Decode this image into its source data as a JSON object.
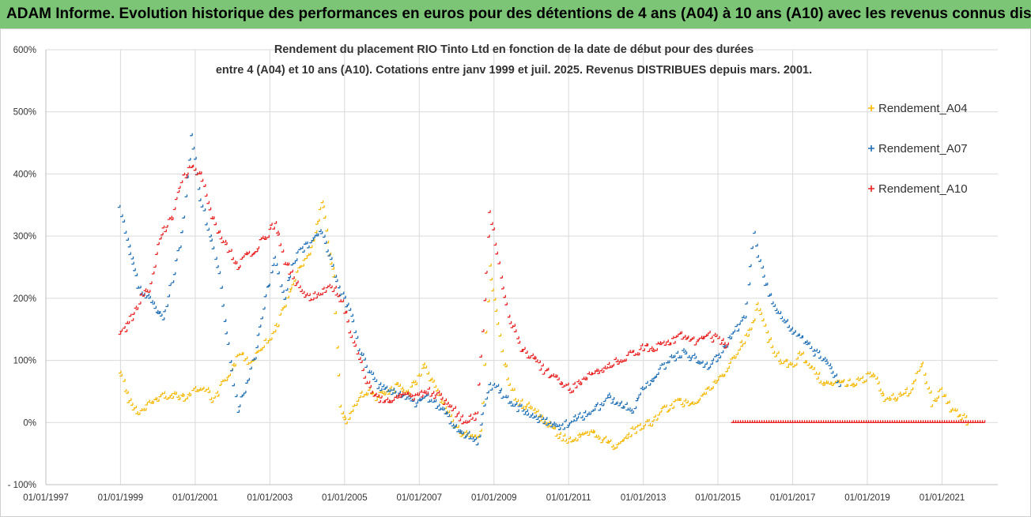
{
  "banner": {
    "text": "ADAM Informe. Evolution historique des performances en euros pour des détentions de 4 ans (A04) à 10 ans (A10) avec les revenus connus distribués",
    "background": "#7cc576"
  },
  "chart_data": {
    "type": "scatter",
    "title_line1": "Rendement du placement RIO Tinto Ltd en fonction de la date de début pour des durées",
    "title_line2": "entre 4 (A04) et 10 ans (A10). Cotations entre janv 1999 et juil. 2025. Revenus DISTRIBUES depuis mars. 2001.",
    "xlabel": "",
    "ylabel": "",
    "x_tick_labels": [
      "01/01/1997",
      "01/01/1999",
      "01/01/2001",
      "01/01/2003",
      "01/01/2005",
      "01/01/2007",
      "01/01/2009",
      "01/01/2011",
      "01/01/2013",
      "01/01/2015",
      "01/01/2017",
      "01/01/2019",
      "01/01/2021"
    ],
    "y_tick_labels": [
      "600%",
      "500%",
      "400%",
      "300%",
      "200%",
      "100%",
      "0%",
      "- 100%"
    ],
    "ylim": [
      -100,
      600
    ],
    "xlim": [
      "1997-01-01",
      "2022-06-30"
    ],
    "grid": true,
    "legend_position": "right",
    "marker": "plus",
    "series": [
      {
        "name": "Rendement_A04",
        "color": "#f5b800",
        "points": [
          [
            "1999-01-01",
            85
          ],
          [
            "1999-03-01",
            50
          ],
          [
            "1999-05-01",
            25
          ],
          [
            "1999-08-01",
            15
          ],
          [
            "1999-11-01",
            30
          ],
          [
            "2000-02-01",
            40
          ],
          [
            "2000-06-01",
            45
          ],
          [
            "2000-10-01",
            40
          ],
          [
            "2001-01-01",
            50
          ],
          [
            "2001-04-01",
            60
          ],
          [
            "2001-07-01",
            30
          ],
          [
            "2001-10-01",
            60
          ],
          [
            "2002-01-01",
            85
          ],
          [
            "2002-04-01",
            110
          ],
          [
            "2002-07-01",
            95
          ],
          [
            "2002-10-01",
            120
          ],
          [
            "2003-01-01",
            130
          ],
          [
            "2003-04-01",
            160
          ],
          [
            "2003-07-01",
            200
          ],
          [
            "2003-10-01",
            240
          ],
          [
            "2004-01-01",
            260
          ],
          [
            "2004-04-01",
            300
          ],
          [
            "2004-06-01",
            360
          ],
          [
            "2004-08-01",
            290
          ],
          [
            "2004-10-01",
            230
          ],
          [
            "2004-12-01",
            20
          ],
          [
            "2005-02-01",
            0
          ],
          [
            "2005-05-01",
            30
          ],
          [
            "2005-08-01",
            50
          ],
          [
            "2005-11-01",
            40
          ],
          [
            "2006-03-01",
            45
          ],
          [
            "2006-07-01",
            60
          ],
          [
            "2006-10-01",
            50
          ],
          [
            "2007-01-01",
            70
          ],
          [
            "2007-03-01",
            90
          ],
          [
            "2007-06-01",
            60
          ],
          [
            "2007-09-01",
            30
          ],
          [
            "2007-12-01",
            0
          ],
          [
            "2008-03-01",
            -20
          ],
          [
            "2008-06-01",
            -25
          ],
          [
            "2008-09-01",
            -20
          ],
          [
            "2008-12-01",
            250
          ],
          [
            "2009-02-01",
            180
          ],
          [
            "2009-04-01",
            110
          ],
          [
            "2009-07-01",
            50
          ],
          [
            "2009-10-01",
            30
          ],
          [
            "2010-02-01",
            20
          ],
          [
            "2010-06-01",
            0
          ],
          [
            "2010-10-01",
            -20
          ],
          [
            "2011-01-01",
            -30
          ],
          [
            "2011-05-01",
            -25
          ],
          [
            "2011-09-01",
            -20
          ],
          [
            "2012-01-01",
            -30
          ],
          [
            "2012-04-01",
            -40
          ],
          [
            "2012-08-01",
            -20
          ],
          [
            "2012-12-01",
            -10
          ],
          [
            "2013-04-01",
            0
          ],
          [
            "2013-08-01",
            20
          ],
          [
            "2013-12-01",
            30
          ],
          [
            "2014-04-01",
            30
          ],
          [
            "2014-08-01",
            40
          ],
          [
            "2014-12-01",
            60
          ],
          [
            "2015-04-01",
            80
          ],
          [
            "2015-08-01",
            120
          ],
          [
            "2015-12-01",
            150
          ],
          [
            "2016-02-01",
            190
          ],
          [
            "2016-05-01",
            140
          ],
          [
            "2016-09-01",
            100
          ],
          [
            "2017-01-01",
            90
          ],
          [
            "2017-04-01",
            110
          ],
          [
            "2017-08-01",
            80
          ],
          [
            "2017-12-01",
            60
          ],
          [
            "2018-04-01",
            70
          ],
          [
            "2018-08-01",
            60
          ],
          [
            "2018-12-01",
            70
          ],
          [
            "2019-03-01",
            80
          ],
          [
            "2019-07-01",
            40
          ],
          [
            "2019-11-01",
            40
          ],
          [
            "2020-03-01",
            50
          ],
          [
            "2020-07-01",
            90
          ],
          [
            "2020-10-01",
            30
          ],
          [
            "2021-01-01",
            50
          ],
          [
            "2021-04-01",
            20
          ],
          [
            "2021-07-01",
            10
          ],
          [
            "2021-10-01",
            0
          ]
        ]
      },
      {
        "name": "Rendement_A07",
        "color": "#1f6fb5",
        "points": [
          [
            "1999-01-01",
            350
          ],
          [
            "1999-03-01",
            300
          ],
          [
            "1999-05-01",
            260
          ],
          [
            "1999-07-01",
            220
          ],
          [
            "1999-10-01",
            200
          ],
          [
            "2000-01-01",
            180
          ],
          [
            "2000-03-01",
            160
          ],
          [
            "2000-06-01",
            230
          ],
          [
            "2000-09-01",
            300
          ],
          [
            "2000-12-01",
            460
          ],
          [
            "2001-03-01",
            360
          ],
          [
            "2001-06-01",
            300
          ],
          [
            "2001-09-01",
            240
          ],
          [
            "2001-12-01",
            120
          ],
          [
            "2002-03-01",
            20
          ],
          [
            "2002-06-01",
            60
          ],
          [
            "2002-09-01",
            120
          ],
          [
            "2002-12-01",
            200
          ],
          [
            "2003-03-01",
            260
          ],
          [
            "2003-06-01",
            200
          ],
          [
            "2003-09-01",
            260
          ],
          [
            "2003-12-01",
            280
          ],
          [
            "2004-03-01",
            290
          ],
          [
            "2004-06-01",
            310
          ],
          [
            "2004-09-01",
            260
          ],
          [
            "2004-12-01",
            210
          ],
          [
            "2005-03-01",
            180
          ],
          [
            "2005-06-01",
            120
          ],
          [
            "2005-09-01",
            80
          ],
          [
            "2005-12-01",
            60
          ],
          [
            "2006-04-01",
            50
          ],
          [
            "2006-08-01",
            40
          ],
          [
            "2006-12-01",
            30
          ],
          [
            "2007-04-01",
            40
          ],
          [
            "2007-08-01",
            20
          ],
          [
            "2007-12-01",
            0
          ],
          [
            "2008-04-01",
            -20
          ],
          [
            "2008-08-01",
            -30
          ],
          [
            "2008-12-01",
            60
          ],
          [
            "2009-03-01",
            50
          ],
          [
            "2009-06-01",
            30
          ],
          [
            "2009-10-01",
            20
          ],
          [
            "2010-02-01",
            10
          ],
          [
            "2010-06-01",
            0
          ],
          [
            "2010-10-01",
            -10
          ],
          [
            "2011-02-01",
            0
          ],
          [
            "2011-06-01",
            10
          ],
          [
            "2011-10-01",
            20
          ],
          [
            "2012-02-01",
            40
          ],
          [
            "2012-06-01",
            30
          ],
          [
            "2012-10-01",
            20
          ],
          [
            "2013-02-01",
            60
          ],
          [
            "2013-06-01",
            80
          ],
          [
            "2013-10-01",
            100
          ],
          [
            "2014-02-01",
            110
          ],
          [
            "2014-06-01",
            100
          ],
          [
            "2014-10-01",
            90
          ],
          [
            "2015-02-01",
            110
          ],
          [
            "2015-06-01",
            140
          ],
          [
            "2015-10-01",
            170
          ],
          [
            "2016-01-01",
            300
          ],
          [
            "2016-04-01",
            230
          ],
          [
            "2016-08-01",
            180
          ],
          [
            "2017-01-01",
            150
          ],
          [
            "2017-05-01",
            130
          ],
          [
            "2017-09-01",
            110
          ],
          [
            "2018-01-01",
            90
          ],
          [
            "2018-05-01",
            60
          ]
        ]
      },
      {
        "name": "Rendement_A10",
        "color": "#e82020",
        "points": [
          [
            "1999-01-01",
            140
          ],
          [
            "1999-03-01",
            150
          ],
          [
            "1999-05-01",
            170
          ],
          [
            "1999-08-01",
            200
          ],
          [
            "1999-11-01",
            220
          ],
          [
            "2000-02-01",
            300
          ],
          [
            "2000-06-01",
            330
          ],
          [
            "2000-09-01",
            390
          ],
          [
            "2000-12-01",
            410
          ],
          [
            "2001-03-01",
            400
          ],
          [
            "2001-06-01",
            340
          ],
          [
            "2001-09-01",
            300
          ],
          [
            "2001-12-01",
            280
          ],
          [
            "2002-03-01",
            250
          ],
          [
            "2002-06-01",
            270
          ],
          [
            "2002-09-01",
            280
          ],
          [
            "2002-12-01",
            300
          ],
          [
            "2003-03-01",
            320
          ],
          [
            "2003-06-01",
            260
          ],
          [
            "2003-09-01",
            230
          ],
          [
            "2003-12-01",
            210
          ],
          [
            "2004-03-01",
            200
          ],
          [
            "2004-06-01",
            210
          ],
          [
            "2004-09-01",
            220
          ],
          [
            "2004-12-01",
            200
          ],
          [
            "2005-03-01",
            150
          ],
          [
            "2005-06-01",
            100
          ],
          [
            "2005-09-01",
            60
          ],
          [
            "2005-12-01",
            40
          ],
          [
            "2006-04-01",
            30
          ],
          [
            "2006-08-01",
            50
          ],
          [
            "2006-12-01",
            40
          ],
          [
            "2007-04-01",
            50
          ],
          [
            "2007-08-01",
            40
          ],
          [
            "2007-12-01",
            20
          ],
          [
            "2008-04-01",
            0
          ],
          [
            "2008-08-01",
            10
          ],
          [
            "2008-12-01",
            340
          ],
          [
            "2009-03-01",
            250
          ],
          [
            "2009-06-01",
            170
          ],
          [
            "2009-10-01",
            120
          ],
          [
            "2010-02-01",
            100
          ],
          [
            "2010-06-01",
            80
          ],
          [
            "2010-10-01",
            70
          ],
          [
            "2011-02-01",
            50
          ],
          [
            "2011-06-01",
            70
          ],
          [
            "2011-10-01",
            80
          ],
          [
            "2012-02-01",
            90
          ],
          [
            "2012-06-01",
            100
          ],
          [
            "2012-10-01",
            110
          ],
          [
            "2013-02-01",
            120
          ],
          [
            "2013-06-01",
            120
          ],
          [
            "2013-10-01",
            130
          ],
          [
            "2014-02-01",
            140
          ],
          [
            "2014-06-01",
            130
          ],
          [
            "2014-10-01",
            140
          ],
          [
            "2015-02-01",
            130
          ],
          [
            "2015-05-01",
            120
          ]
        ],
        "flat_segment": {
          "x_start": "2015-06-01",
          "x_end": "2022-03-01",
          "y": 0
        }
      }
    ]
  }
}
